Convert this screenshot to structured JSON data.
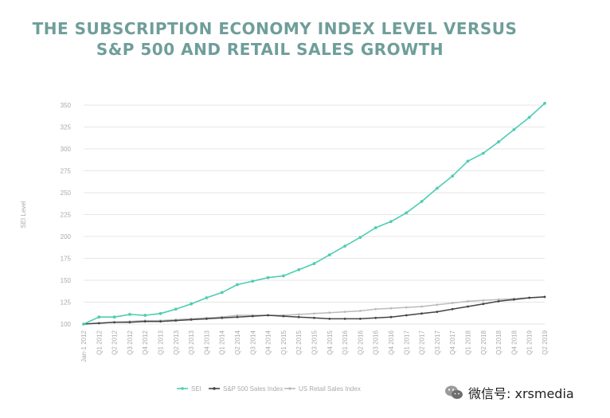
{
  "title_line1": "THE SUBSCRIPTION ECONOMY INDEX LEVEL VERSUS",
  "title_line2": "S&P 500 AND RETAIL SALES GROWTH",
  "watermark_text": "微信号: xrsmedia",
  "colors": {
    "sei": "#4ecdb3",
    "sp500": "#444444",
    "retail": "#bbbbbb",
    "title": "#6f9e9a",
    "grid": "#e6e6e6",
    "tick": "#aaaaaa"
  },
  "chart_data": {
    "type": "line",
    "title": "THE SUBSCRIPTION ECONOMY INDEX LEVEL VERSUS S&P 500 AND RETAIL SALES GROWTH",
    "xlabel": "",
    "ylabel": "SEI Level",
    "ylim": [
      100,
      350
    ],
    "yticks": [
      100,
      125,
      150,
      175,
      200,
      225,
      250,
      275,
      300,
      325,
      350
    ],
    "grid": true,
    "legend_position": "bottom",
    "categories": [
      "Jan-1 2012",
      "Q1 2012",
      "Q2 2012",
      "Q3 2012",
      "Q4 2012",
      "Q1 2013",
      "Q2 2013",
      "Q3 2013",
      "Q4 2013",
      "Q1 2014",
      "Q2 2014",
      "Q3 2014",
      "Q4 2014",
      "Q1 2015",
      "Q2 2015",
      "Q3 2015",
      "Q4 2015",
      "Q1 2016",
      "Q2 2016",
      "Q3 2016",
      "Q4 2016",
      "Q1 2017",
      "Q2 2017",
      "Q3 2017",
      "Q4 2017",
      "Q1 2018",
      "Q2 2018",
      "Q3 2018",
      "Q4 2018",
      "Q1 2019",
      "Q2 2019"
    ],
    "series": [
      {
        "name": "SEI",
        "values": [
          100,
          108,
          108,
          111,
          110,
          112,
          117,
          123,
          130,
          136,
          145,
          149,
          153,
          155,
          162,
          169,
          179,
          189,
          199,
          210,
          217,
          227,
          240,
          255,
          269,
          286,
          295,
          308,
          322,
          336,
          352
        ]
      },
      {
        "name": "S&P 500 Sales Index",
        "values": [
          100,
          101,
          102,
          102,
          103,
          103,
          104,
          105,
          106,
          107,
          108,
          109,
          110,
          109,
          108,
          107,
          106,
          106,
          106,
          107,
          108,
          110,
          112,
          114,
          117,
          120,
          123,
          126,
          128,
          130,
          131
        ]
      },
      {
        "name": "US Retail Sales Index",
        "values": [
          100,
          101,
          102,
          103,
          104,
          104,
          105,
          106,
          107,
          108,
          110,
          110,
          110,
          110,
          111,
          112,
          113,
          114,
          115,
          117,
          118,
          119,
          120,
          122,
          124,
          126,
          127,
          128,
          129,
          130,
          131
        ]
      }
    ]
  }
}
